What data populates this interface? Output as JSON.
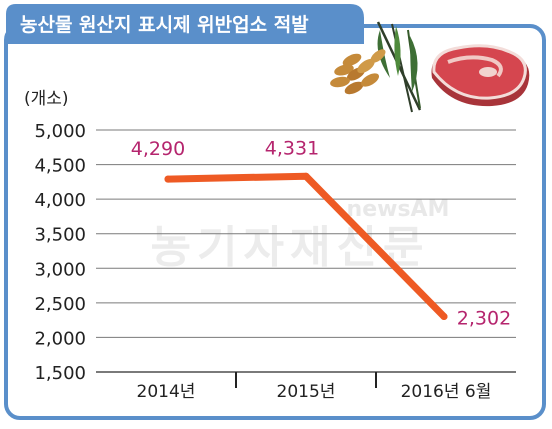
{
  "header": {
    "title": "농산물 원산지 표시제 위반업소 적발"
  },
  "watermark": {
    "line1": "newsAM",
    "line2": "농기자재신문"
  },
  "colors": {
    "header_bg": "#5a8fca",
    "frame_border": "#5a8fca",
    "line": "#ee5a24",
    "value_label": "#b5256e",
    "grid": "#7a7a7a",
    "axis_text": "#222222"
  },
  "chart_data": {
    "type": "line",
    "title": "농산물 원산지 표시제 위반업소 적발",
    "ylabel": "(개소)",
    "xlabel": "",
    "categories": [
      "2014년",
      "2015년",
      "2016년 6월"
    ],
    "series": [
      {
        "values": [
          4290,
          4331,
          2302
        ]
      }
    ],
    "data_labels": [
      "4,290",
      "4,331",
      "2,302"
    ],
    "ylim": [
      1500,
      5000
    ],
    "yticks": [
      5000,
      4500,
      4000,
      3500,
      3000,
      2500,
      2000,
      1500
    ],
    "ytick_labels": [
      "5,000",
      "4,500",
      "4,000",
      "3,500",
      "3,000",
      "2,500",
      "2,000",
      "1,500"
    ],
    "grid": true,
    "legend": "none"
  },
  "decor": {
    "icons": [
      "rice-stalk-icon",
      "meat-steak-icon"
    ]
  }
}
